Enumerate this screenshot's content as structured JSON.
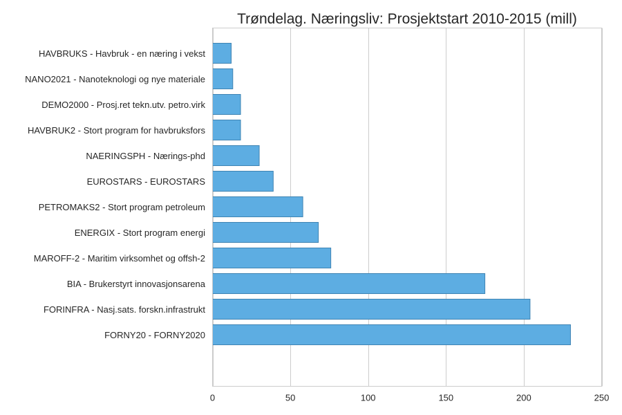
{
  "chart_data": {
    "type": "bar",
    "orientation": "horizontal",
    "title": "Trøndelag. Næringsliv: Prosjektstart 2010-2015 (mill)",
    "xlabel": "",
    "ylabel": "",
    "categories": [
      "HAVBRUKS - Havbruk - en næring i vekst",
      "NANO2021 - Nanoteknologi og nye materiale",
      "DEMO2000 - Prosj.ret tekn.utv. petro.virk",
      "HAVBRUK2 - Stort program for havbruksfors",
      "NAERINGSPH - Nærings-phd",
      "EUROSTARS - EUROSTARS",
      "PETROMAKS2 - Stort program petroleum",
      "ENERGIX - Stort program energi",
      "MAROFF-2 - Maritim virksomhet og offsh-2",
      "BIA - Brukerstyrt innovasjonsarena",
      "FORINFRA - Nasj.sats. forskn.infrastrukt",
      "FORNY20 - FORNY2020"
    ],
    "values": [
      12,
      13,
      18,
      18,
      30,
      39,
      58,
      68,
      76,
      175,
      204,
      230
    ],
    "xlim": [
      0,
      250
    ],
    "xticks": [
      "0",
      "50",
      "100",
      "150",
      "200",
      "250"
    ],
    "grid": true,
    "colors": {
      "bar_fill": "#5dade2",
      "bar_edge": "#3f84b3"
    }
  }
}
